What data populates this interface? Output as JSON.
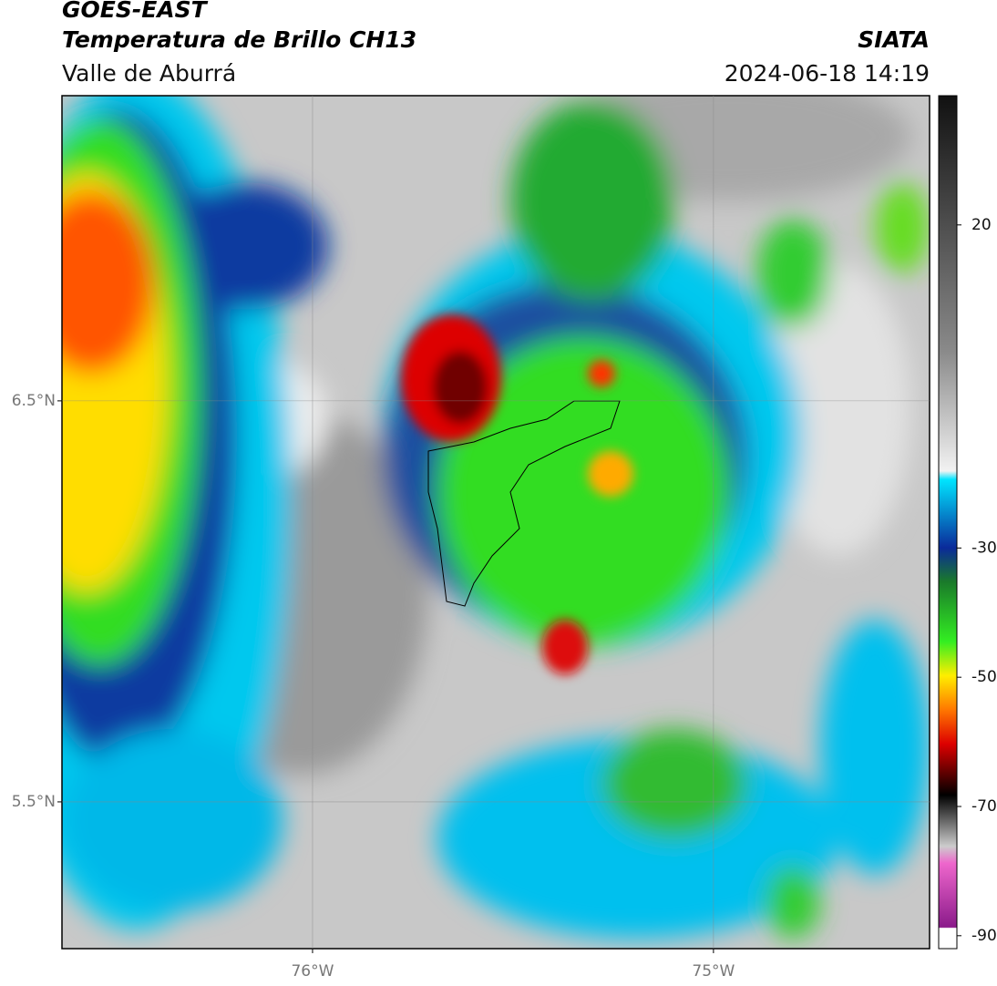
{
  "header": {
    "line1": "GOES-EAST",
    "line2": "Temperatura de Brillo CH13",
    "line3": "Valle de Aburrá",
    "agency": "SIATA",
    "datetime": "2024-06-18 14:19"
  },
  "map": {
    "xlim": [
      -76.625,
      -74.461
    ],
    "ylim": [
      5.134,
      7.261
    ],
    "xticks": [
      {
        "value": -76,
        "label": "76°W"
      },
      {
        "value": -75,
        "label": "75°W"
      }
    ],
    "yticks": [
      {
        "value": 6.5,
        "label": "6.5°N"
      },
      {
        "value": 5.5,
        "label": "5.5°N"
      }
    ]
  },
  "colorbar": {
    "lim": [
      -92,
      40
    ],
    "ticks": [
      20,
      -30,
      -50,
      -70,
      -90
    ]
  }
}
